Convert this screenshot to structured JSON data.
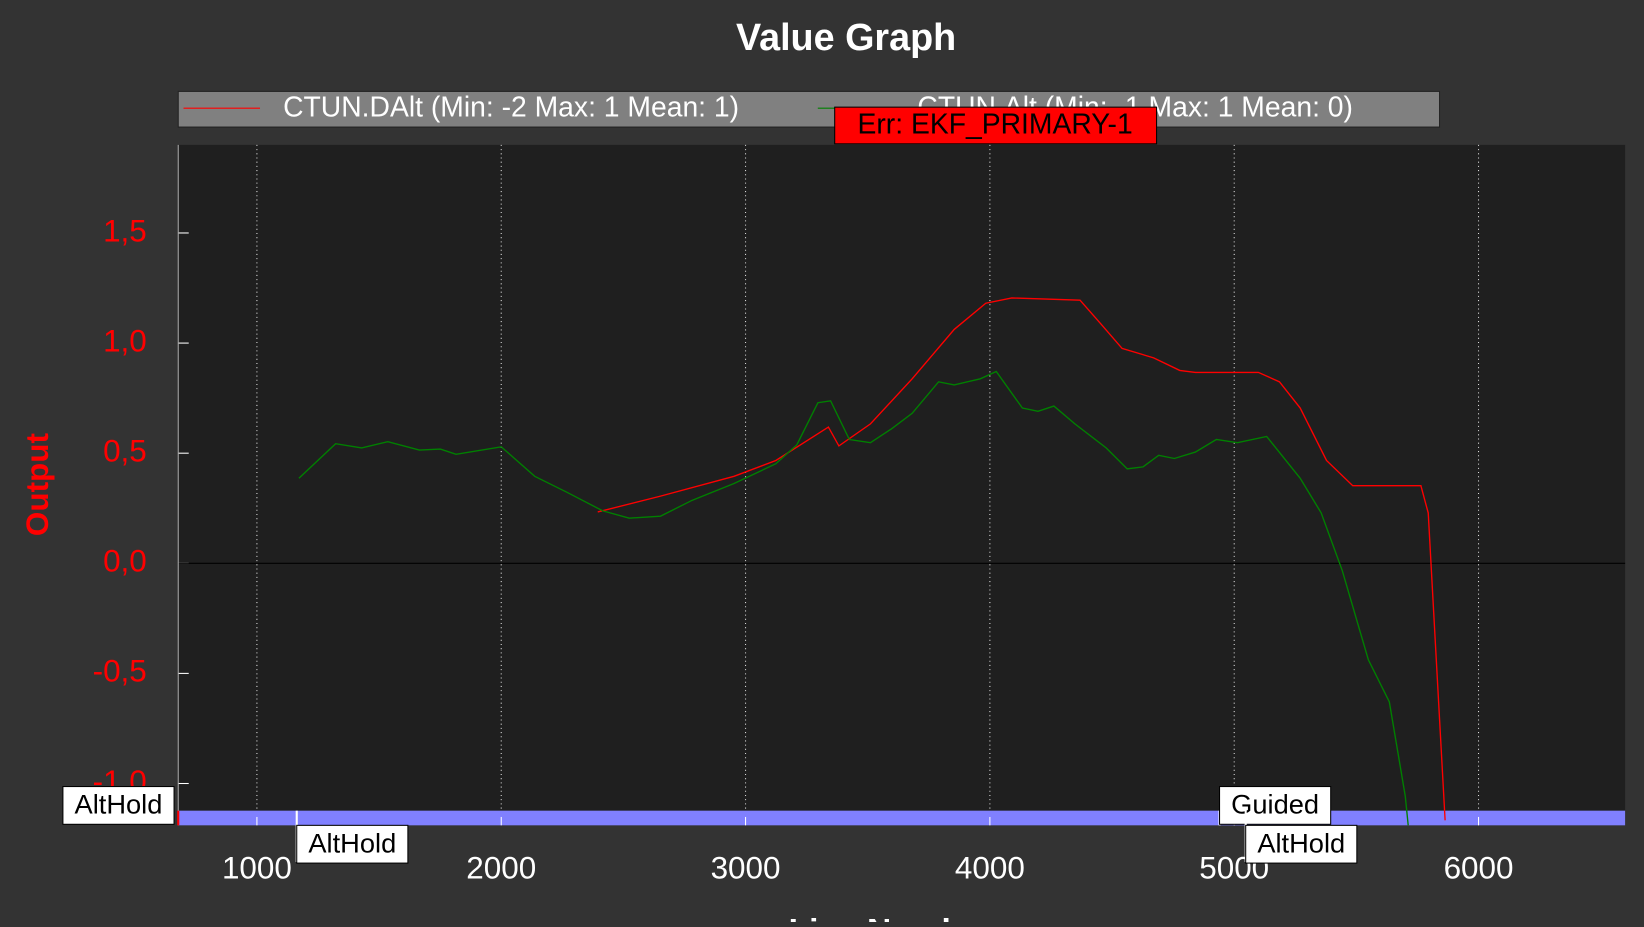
{
  "chart_data": {
    "type": "line",
    "title": "Value Graph",
    "x_label": "Line Number",
    "y_label": "Output",
    "xlim": [
      678,
      6600
    ],
    "ylim": [
      -1.19,
      1.9
    ],
    "xticks": [
      1000,
      2000,
      3000,
      4000,
      5000,
      6000
    ],
    "yticks": [
      {
        "value": -1,
        "label": "-1,0"
      },
      {
        "value": -0.5,
        "label": "-0,5"
      },
      {
        "value": 0,
        "label": "0,0"
      },
      {
        "value": 0.5,
        "label": "0,5"
      },
      {
        "value": 1,
        "label": "1,0"
      },
      {
        "value": 1.5,
        "label": "1,5"
      }
    ],
    "grid": true,
    "series": [
      {
        "name": "CTUN.DAlt (Min: -2 Max: 1 Mean: 1)",
        "color": "#ff0000",
        "x": [
          2395,
          2652,
          2953,
          3124,
          3339,
          3382,
          3511,
          3682,
          3854,
          3983,
          4090,
          4369,
          4455,
          4541,
          4670,
          4777,
          4841,
          5099,
          5185,
          5270,
          5378,
          5485,
          5764,
          5794,
          5863
        ],
        "values": [
          0.233,
          0.305,
          0.395,
          0.467,
          0.619,
          0.533,
          0.633,
          0.838,
          1.062,
          1.181,
          1.205,
          1.195,
          1.086,
          0.976,
          0.933,
          0.876,
          0.867,
          0.867,
          0.824,
          0.705,
          0.467,
          0.352,
          0.352,
          0.229,
          -1.167
        ]
      },
      {
        "name": "CTUN.Alt (Min: -1 Max: 1 Mean: 0)",
        "color": "#008000",
        "x": [
          1172,
          1322,
          1429,
          1536,
          1665,
          1751,
          1815,
          2000,
          2137,
          2266,
          2416,
          2524,
          2652,
          2781,
          2953,
          3124,
          3210,
          3296,
          3348,
          3425,
          3511,
          3597,
          3682,
          3790,
          3854,
          3961,
          4026,
          4133,
          4197,
          4262,
          4348,
          4476,
          4562,
          4627,
          4691,
          4755,
          4841,
          4927,
          5013,
          5133,
          5270,
          5356,
          5442,
          5549,
          5635,
          5700,
          5712
        ],
        "values": [
          0.386,
          0.543,
          0.524,
          0.552,
          0.514,
          0.519,
          0.495,
          0.529,
          0.395,
          0.324,
          0.238,
          0.205,
          0.214,
          0.286,
          0.362,
          0.452,
          0.538,
          0.729,
          0.738,
          0.562,
          0.548,
          0.61,
          0.681,
          0.824,
          0.81,
          0.838,
          0.871,
          0.705,
          0.69,
          0.714,
          0.633,
          0.524,
          0.429,
          0.438,
          0.49,
          0.476,
          0.505,
          0.562,
          0.548,
          0.576,
          0.386,
          0.229,
          -0.033,
          -0.438,
          -0.629,
          -1.057,
          -1.19
        ]
      }
    ],
    "modes": [
      {
        "label": "AltHold",
        "x": 678
      },
      {
        "label": "AltHold",
        "x": 1163
      },
      {
        "label": "Guided",
        "x": 4940
      },
      {
        "label": "AltHold",
        "x": 5047
      }
    ],
    "error_annotation": {
      "label": "Err: EKF_PRIMARY-1",
      "x": 3382
    }
  }
}
